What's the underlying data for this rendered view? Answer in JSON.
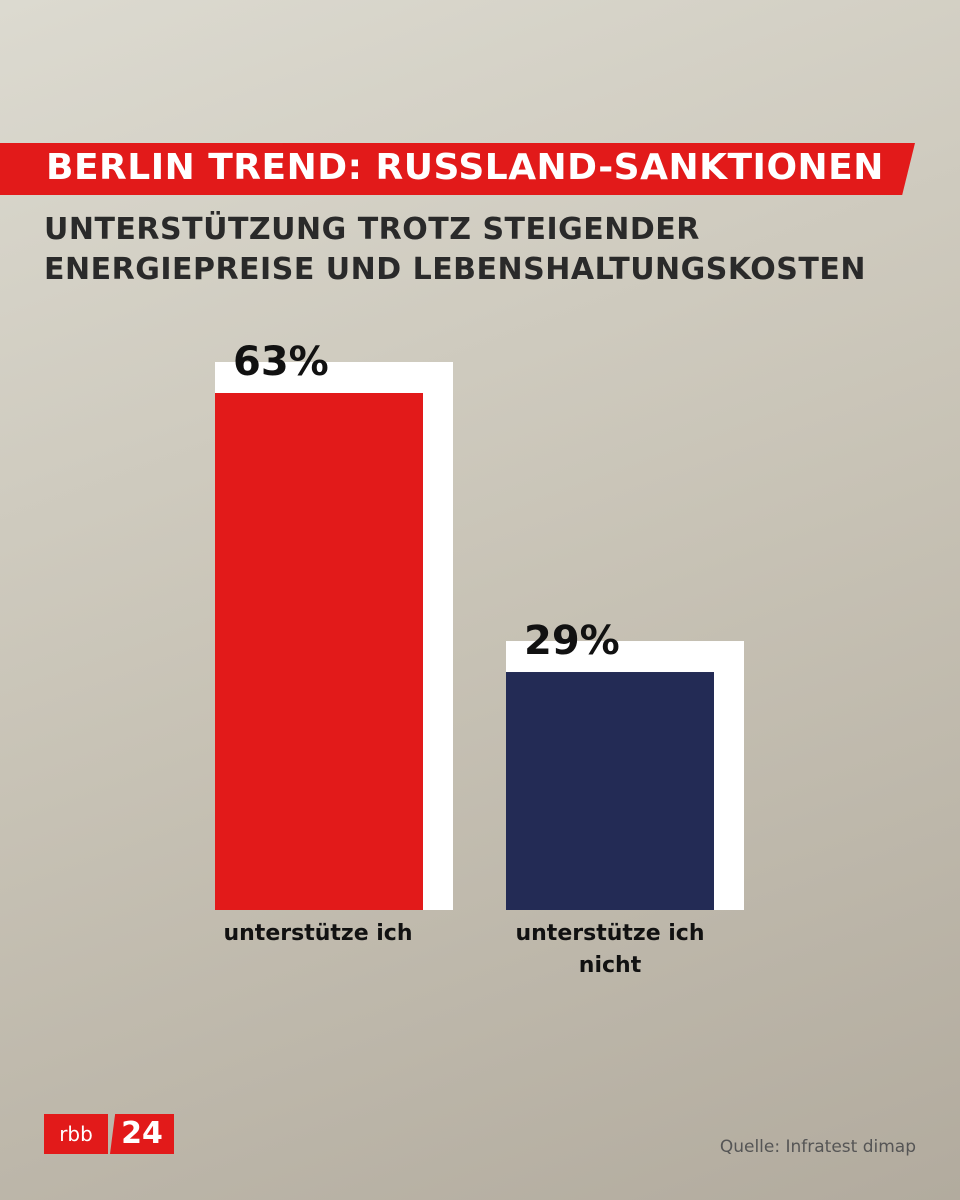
{
  "header": {
    "title": "BERLIN TREND: RUSSLAND-SANKTIONEN",
    "subtitle_lines": [
      "UNTERSTÜTZUNG TROTZ STEIGENDER",
      "ENERGIEPREISE UND LEBENSHALTUNGSKOSTEN"
    ]
  },
  "chart_data": {
    "type": "bar",
    "title": "BERLIN TREND: RUSSLAND-SANKTIONEN",
    "subtitle": "UNTERSTÜTZUNG TROTZ STEIGENDER ENERGIEPREISE UND LEBENSHALTUNGSKOSTEN",
    "categories": [
      "unterstütze ich",
      "unterstütze ich nicht"
    ],
    "values": [
      63,
      29
    ],
    "value_labels": [
      "63%",
      "29%"
    ],
    "colors": [
      "#e21a1a",
      "#232b55"
    ],
    "shadow_color": "#ffffff",
    "xlabel": "",
    "ylabel": "",
    "grid": false
  },
  "category_labels": [
    "unterstütze ich",
    "unterstütze ich\nnicht"
  ],
  "logo": {
    "left": "rbb",
    "right": "24"
  },
  "source": "Quelle: Infratest dimap"
}
